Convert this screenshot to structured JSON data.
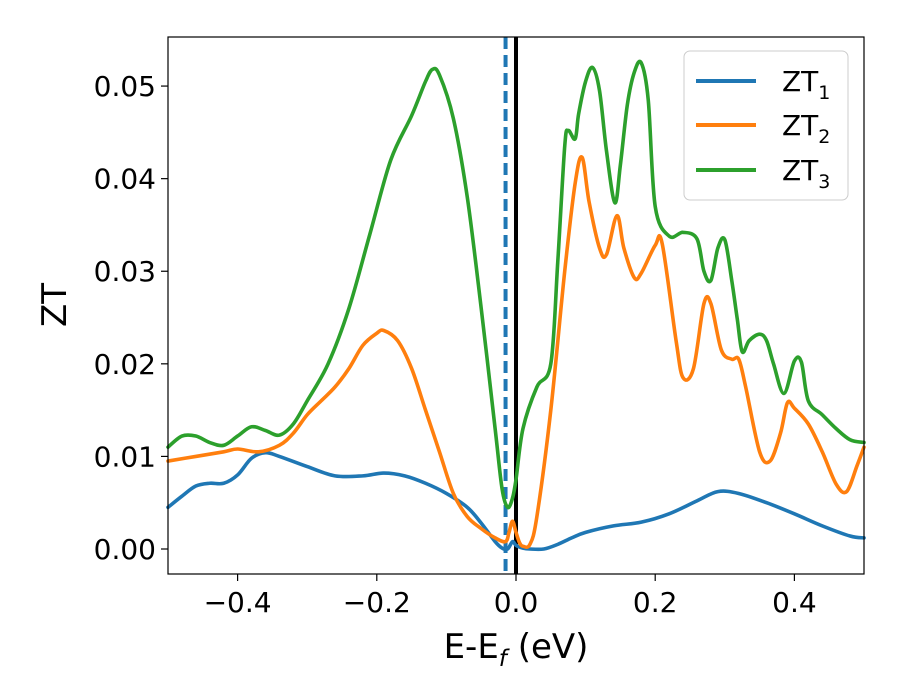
{
  "chart_data": {
    "type": "line",
    "xlabel": "E-E",
    "xlabel_sub": "f",
    "xlabel_unit": " (eV)",
    "ylabel": "ZT",
    "xlim": [
      -0.5,
      0.5
    ],
    "ylim": [
      -0.0027,
      0.0553
    ],
    "xticks": [
      -0.4,
      -0.2,
      0.0,
      0.2,
      0.4
    ],
    "xtick_labels": [
      "−0.4",
      "−0.2",
      "0.0",
      "0.2",
      "0.4"
    ],
    "yticks": [
      0.0,
      0.01,
      0.02,
      0.03,
      0.04,
      0.05
    ],
    "ytick_labels": [
      "0.00",
      "0.01",
      "0.02",
      "0.03",
      "0.04",
      "0.05"
    ],
    "grid": false,
    "legend_position": "top-right",
    "vlines": [
      {
        "x": 0.0,
        "color": "#000000",
        "style": "solid"
      },
      {
        "x": -0.015,
        "color": "#1f77b4",
        "style": "dashed"
      }
    ],
    "series": [
      {
        "name": "ZT",
        "sub": "1",
        "color": "#1f77b4",
        "x": [
          -0.5,
          -0.48,
          -0.46,
          -0.44,
          -0.42,
          -0.4,
          -0.38,
          -0.36,
          -0.34,
          -0.3,
          -0.26,
          -0.22,
          -0.19,
          -0.16,
          -0.13,
          -0.1,
          -0.07,
          -0.05,
          -0.03,
          -0.02,
          -0.012,
          -0.005,
          0.0,
          0.01,
          0.02,
          0.04,
          0.06,
          0.08,
          0.1,
          0.14,
          0.18,
          0.22,
          0.26,
          0.29,
          0.32,
          0.36,
          0.4,
          0.44,
          0.48,
          0.5
        ],
        "y": [
          0.0045,
          0.0057,
          0.0068,
          0.0071,
          0.0071,
          0.008,
          0.0098,
          0.0104,
          0.01,
          0.0089,
          0.0079,
          0.0079,
          0.0082,
          0.0079,
          0.0071,
          0.006,
          0.0045,
          0.0028,
          0.0008,
          0.0001,
          0.0,
          0.0008,
          0.0004,
          0.0001,
          0.0,
          0.0,
          0.0005,
          0.0012,
          0.0018,
          0.0025,
          0.0029,
          0.0038,
          0.0052,
          0.0062,
          0.006,
          0.005,
          0.0038,
          0.0025,
          0.0014,
          0.0012
        ]
      },
      {
        "name": "ZT",
        "sub": "2",
        "color": "#ff7f0e",
        "x": [
          -0.5,
          -0.46,
          -0.42,
          -0.4,
          -0.37,
          -0.34,
          -0.32,
          -0.3,
          -0.28,
          -0.26,
          -0.24,
          -0.22,
          -0.2,
          -0.19,
          -0.17,
          -0.15,
          -0.13,
          -0.11,
          -0.09,
          -0.07,
          -0.05,
          -0.03,
          -0.015,
          -0.01,
          -0.005,
          0.0,
          0.005,
          0.01,
          0.02,
          0.03,
          0.05,
          0.07,
          0.085,
          0.095,
          0.105,
          0.12,
          0.13,
          0.145,
          0.155,
          0.17,
          0.18,
          0.2,
          0.21,
          0.23,
          0.24,
          0.255,
          0.27,
          0.28,
          0.295,
          0.31,
          0.32,
          0.33,
          0.35,
          0.365,
          0.38,
          0.39,
          0.4,
          0.42,
          0.44,
          0.46,
          0.475,
          0.49,
          0.5
        ],
        "y": [
          0.0095,
          0.01,
          0.0105,
          0.0108,
          0.0105,
          0.0112,
          0.0125,
          0.0145,
          0.016,
          0.0175,
          0.0195,
          0.022,
          0.0233,
          0.0236,
          0.0225,
          0.0195,
          0.015,
          0.0105,
          0.006,
          0.0035,
          0.0022,
          0.0012,
          0.0008,
          0.0018,
          0.003,
          0.0018,
          0.0007,
          0.0003,
          0.0005,
          0.0035,
          0.015,
          0.03,
          0.0395,
          0.0423,
          0.0375,
          0.0325,
          0.0318,
          0.036,
          0.0325,
          0.0293,
          0.0298,
          0.0328,
          0.033,
          0.0225,
          0.0185,
          0.0195,
          0.0265,
          0.0265,
          0.0215,
          0.0205,
          0.0205,
          0.0175,
          0.0105,
          0.0095,
          0.0125,
          0.0158,
          0.0152,
          0.0135,
          0.0105,
          0.007,
          0.0062,
          0.009,
          0.011
        ]
      },
      {
        "name": "ZT",
        "sub": "3",
        "color": "#2ca02c",
        "x": [
          -0.5,
          -0.48,
          -0.46,
          -0.44,
          -0.42,
          -0.4,
          -0.38,
          -0.36,
          -0.34,
          -0.32,
          -0.3,
          -0.27,
          -0.24,
          -0.21,
          -0.18,
          -0.15,
          -0.13,
          -0.12,
          -0.11,
          -0.09,
          -0.07,
          -0.05,
          -0.03,
          -0.02,
          -0.012,
          -0.005,
          0.0,
          0.01,
          0.03,
          0.05,
          0.06,
          0.07,
          0.075,
          0.085,
          0.09,
          0.1,
          0.11,
          0.12,
          0.13,
          0.142,
          0.15,
          0.16,
          0.17,
          0.18,
          0.19,
          0.2,
          0.22,
          0.24,
          0.26,
          0.27,
          0.28,
          0.29,
          0.3,
          0.31,
          0.318,
          0.325,
          0.335,
          0.35,
          0.36,
          0.37,
          0.385,
          0.4,
          0.41,
          0.42,
          0.44,
          0.46,
          0.48,
          0.5
        ],
        "y": [
          0.011,
          0.0122,
          0.0122,
          0.0115,
          0.0112,
          0.0122,
          0.0132,
          0.0128,
          0.0123,
          0.0135,
          0.016,
          0.02,
          0.026,
          0.034,
          0.042,
          0.0468,
          0.0505,
          0.0518,
          0.0512,
          0.0465,
          0.038,
          0.026,
          0.013,
          0.0065,
          0.0045,
          0.0055,
          0.0075,
          0.013,
          0.0175,
          0.02,
          0.031,
          0.0435,
          0.0452,
          0.0443,
          0.047,
          0.0505,
          0.052,
          0.0495,
          0.043,
          0.0374,
          0.0415,
          0.048,
          0.0515,
          0.0525,
          0.0485,
          0.037,
          0.0338,
          0.0342,
          0.0335,
          0.03,
          0.029,
          0.0325,
          0.0334,
          0.029,
          0.0248,
          0.0213,
          0.0225,
          0.0232,
          0.0225,
          0.02,
          0.0168,
          0.0203,
          0.0202,
          0.016,
          0.0145,
          0.013,
          0.0118,
          0.0115
        ]
      }
    ]
  }
}
